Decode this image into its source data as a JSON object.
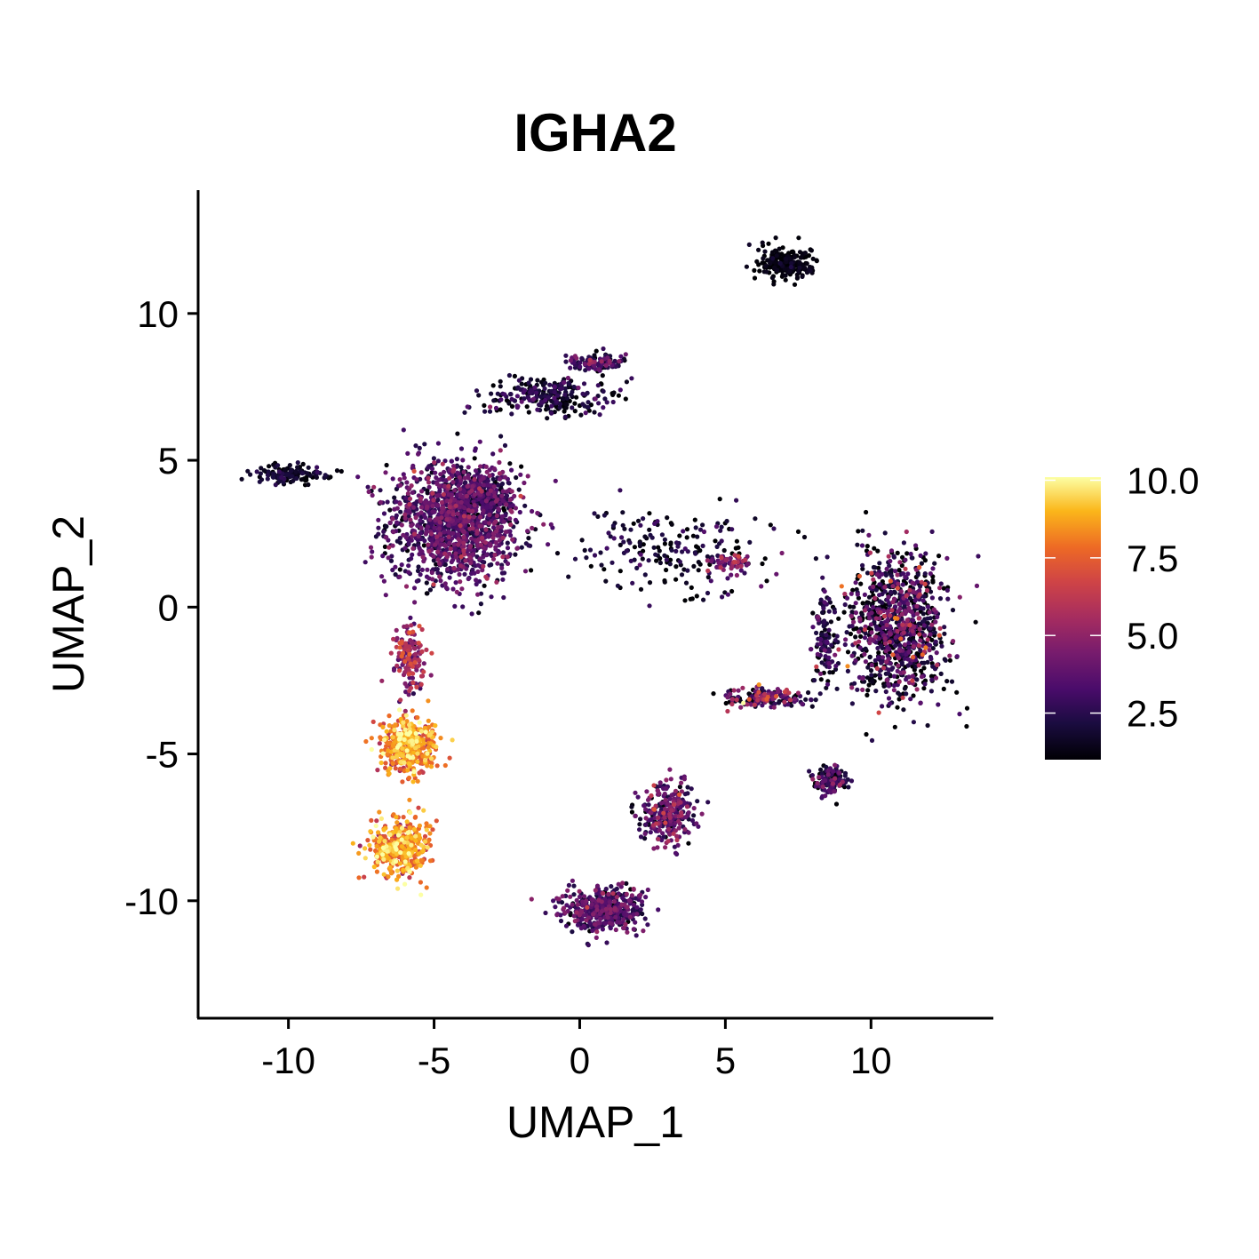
{
  "chart_data": {
    "type": "scatter",
    "title": "IGHA2",
    "xlabel": "UMAP_1",
    "ylabel": "UMAP_2",
    "xlim": [
      -13.1,
      14.2
    ],
    "ylim": [
      -14.0,
      14.2
    ],
    "xticks": [
      -10,
      -5,
      0,
      5,
      10
    ],
    "yticks": [
      -10,
      -5,
      0,
      5,
      10
    ],
    "xtick_labels": [
      "-10",
      "-5",
      "0",
      "5",
      "10"
    ],
    "ytick_labels": [
      "-10",
      "-5",
      "0",
      "5",
      "10"
    ],
    "color_scale": "inferno",
    "colorbar": {
      "range": [
        1.0,
        10.1
      ],
      "ticks": [
        2.5,
        5.0,
        7.5,
        10.0
      ],
      "tick_labels": [
        "2.5",
        "5.0",
        "7.5",
        "10.0"
      ],
      "placement": "right"
    },
    "clusters": [
      {
        "cluster": "left-large-blob",
        "center": [
          -4.3,
          2.9
        ],
        "spread": [
          2.1,
          1.9
        ],
        "n_points": 1300,
        "expression_mean": 3.2,
        "expression_sd": 1.1
      },
      {
        "cluster": "upper-arm",
        "center": [
          -1.0,
          7.2
        ],
        "spread": [
          2.0,
          0.6
        ],
        "n_points": 260,
        "expression_mean": 1.8,
        "expression_sd": 0.9
      },
      {
        "cluster": "upper-arm-tip",
        "center": [
          0.6,
          8.3
        ],
        "spread": [
          0.9,
          0.3
        ],
        "n_points": 110,
        "expression_mean": 2.6,
        "expression_sd": 1.2
      },
      {
        "cluster": "left-tail",
        "center": [
          -9.9,
          4.5
        ],
        "spread": [
          1.4,
          0.3
        ],
        "n_points": 130,
        "expression_mean": 1.5,
        "expression_sd": 0.6
      },
      {
        "cluster": "middle-band",
        "center": [
          -3.4,
          3.8
        ],
        "spread": [
          1.0,
          0.7
        ],
        "n_points": 220,
        "expression_mean": 2.5,
        "expression_sd": 1.1
      },
      {
        "cluster": "bridge-strand",
        "center": [
          3.1,
          2.0
        ],
        "spread": [
          3.5,
          1.2
        ],
        "n_points": 200,
        "expression_mean": 1.6,
        "expression_sd": 1.0
      },
      {
        "cluster": "bridge-node",
        "center": [
          5.2,
          1.5
        ],
        "spread": [
          0.6,
          0.3
        ],
        "n_points": 60,
        "expression_mean": 4.2,
        "expression_sd": 1.4
      },
      {
        "cluster": "stalk",
        "center": [
          -5.8,
          -1.7
        ],
        "spread": [
          0.5,
          1.0
        ],
        "n_points": 160,
        "expression_mean": 4.8,
        "expression_sd": 1.3
      },
      {
        "cluster": "lower-left-blob-1",
        "center": [
          -5.9,
          -4.7
        ],
        "spread": [
          0.85,
          0.9
        ],
        "n_points": 420,
        "expression_mean": 8.0,
        "expression_sd": 1.1
      },
      {
        "cluster": "lower-left-blob-2",
        "center": [
          -6.2,
          -8.2
        ],
        "spread": [
          0.9,
          0.9
        ],
        "n_points": 400,
        "expression_mean": 8.2,
        "expression_sd": 1.1
      },
      {
        "cluster": "bottom-center-upper",
        "center": [
          3.0,
          -7.0
        ],
        "spread": [
          0.9,
          0.9
        ],
        "n_points": 280,
        "expression_mean": 3.4,
        "expression_sd": 1.4
      },
      {
        "cluster": "bottom-center-lower",
        "center": [
          0.8,
          -10.3
        ],
        "spread": [
          1.3,
          0.7
        ],
        "n_points": 420,
        "expression_mean": 3.0,
        "expression_sd": 1.2
      },
      {
        "cluster": "top-right-crescent",
        "center": [
          7.1,
          11.7
        ],
        "spread": [
          0.9,
          0.5
        ],
        "n_points": 220,
        "expression_mean": 1.1,
        "expression_sd": 0.3
      },
      {
        "cluster": "right-large-blob",
        "center": [
          10.9,
          -0.6
        ],
        "spread": [
          1.6,
          2.2
        ],
        "n_points": 950,
        "expression_mean": 2.3,
        "expression_sd": 1.8
      },
      {
        "cluster": "right-lower-small",
        "center": [
          8.6,
          -5.9
        ],
        "spread": [
          0.5,
          0.5
        ],
        "n_points": 130,
        "expression_mean": 2.3,
        "expression_sd": 1.6
      },
      {
        "cluster": "right-mid-band",
        "center": [
          6.3,
          -3.1
        ],
        "spread": [
          1.2,
          0.3
        ],
        "n_points": 160,
        "expression_mean": 3.0,
        "expression_sd": 2.2
      },
      {
        "cluster": "right-connection",
        "center": [
          8.4,
          -1.2
        ],
        "spread": [
          0.4,
          1.3
        ],
        "n_points": 120,
        "expression_mean": 1.8,
        "expression_sd": 1.2
      }
    ]
  }
}
